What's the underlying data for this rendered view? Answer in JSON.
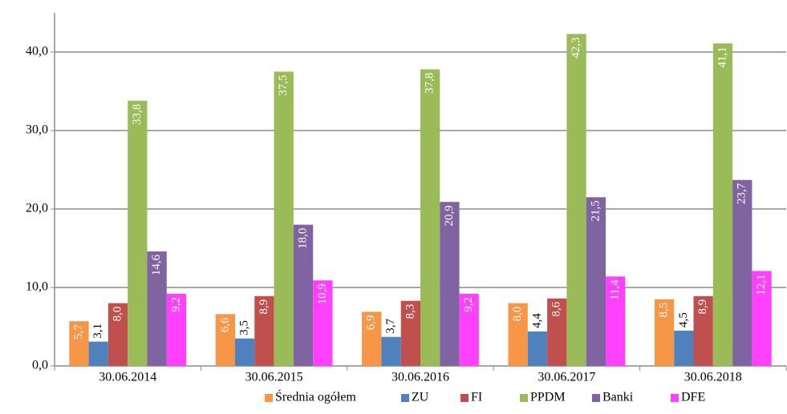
{
  "chart_data": {
    "type": "bar",
    "categories": [
      "30.06.2014",
      "30.06.2015",
      "30.06.2016",
      "30.06.2017",
      "30.06.2018"
    ],
    "series": [
      {
        "name": "Średnia ogółem",
        "color": "#f79646",
        "values": [
          5.7,
          6.6,
          6.9,
          8.0,
          8.5
        ],
        "value_labels": [
          "5,7",
          "6,6",
          "6,9",
          "8,0",
          "8,5"
        ]
      },
      {
        "name": "ZU",
        "color": "#4f81bd",
        "values": [
          3.1,
          3.5,
          3.7,
          4.4,
          4.5
        ],
        "value_labels": [
          "3,1",
          "3,5",
          "3,7",
          "4,4",
          "4,5"
        ]
      },
      {
        "name": "FI",
        "color": "#c0504d",
        "values": [
          8.0,
          8.9,
          8.3,
          8.6,
          8.9
        ],
        "value_labels": [
          "8,0",
          "8,9",
          "8,3",
          "8,6",
          "8,9"
        ]
      },
      {
        "name": "PPDM",
        "color": "#9bbb59",
        "values": [
          33.8,
          37.5,
          37.8,
          42.3,
          41.1
        ],
        "value_labels": [
          "33,8",
          "37,5",
          "37,8",
          "42,3",
          "41,1"
        ]
      },
      {
        "name": "Banki",
        "color": "#8064a2",
        "values": [
          14.6,
          18.0,
          20.9,
          21.5,
          23.7
        ],
        "value_labels": [
          "14,6",
          "18,0",
          "20,9",
          "21,5",
          "23,7"
        ]
      },
      {
        "name": "DFE",
        "color": "#ff40ff",
        "values": [
          9.2,
          10.9,
          9.2,
          11.4,
          12.1
        ],
        "value_labels": [
          "9,2",
          "10,9",
          "9,2",
          "11,4",
          "12,1"
        ]
      }
    ],
    "ylim": [
      0,
      45
    ],
    "yticks": [
      {
        "value": 0,
        "label": "0,0"
      },
      {
        "value": 10,
        "label": "10,0"
      },
      {
        "value": 20,
        "label": "20,0"
      },
      {
        "value": 30,
        "label": "30,0"
      },
      {
        "value": 40,
        "label": "40,0"
      }
    ],
    "grid": true,
    "legend": "bottom"
  }
}
